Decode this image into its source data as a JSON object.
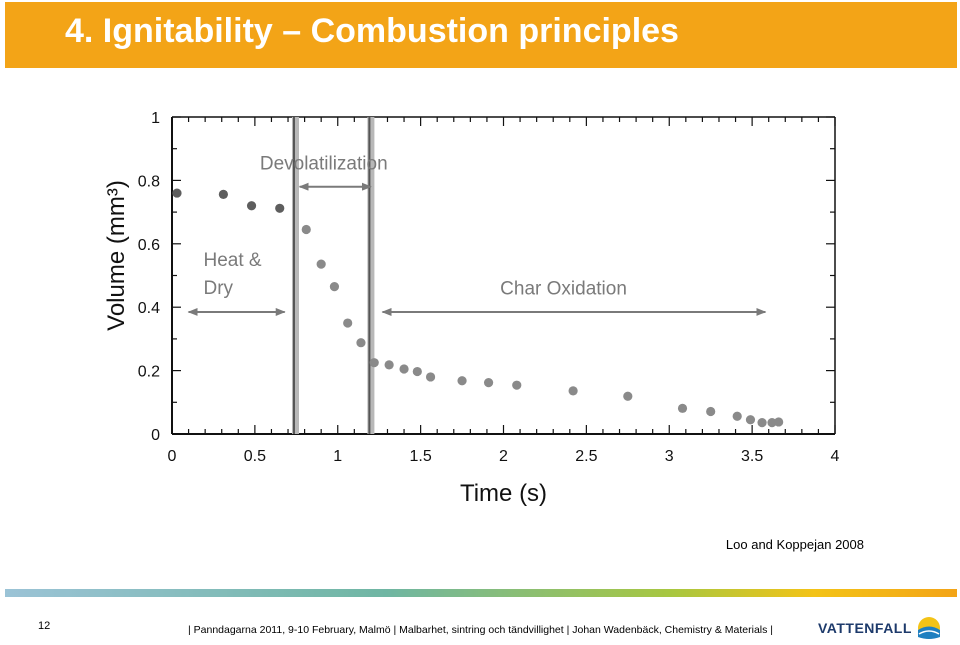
{
  "slide": {
    "title": "4. Ignitability – Combustion principles",
    "citation": "Loo and Koppejan 2008",
    "page_number": "12",
    "footer": "| Panndagarna 2011, 9-10 February, Malmö | Malbarhet, sintring och tändvillighet | Johan Wadenbäck, Chemistry & Materials |",
    "logo_text": "VATTENFALL",
    "colors": {
      "title_bar": "#f3a417",
      "title_text": "#ffffff",
      "points": "#8a8a8a",
      "region_lines": "#6e6e6e",
      "annotations": "#7a7a7a"
    }
  },
  "chart_data": {
    "type": "scatter",
    "xlabel": "Time (s)",
    "ylabel": "Volume (mm³)",
    "xlim": [
      0,
      4
    ],
    "ylim": [
      0,
      1
    ],
    "x_ticks": [
      "0",
      "0.5",
      "1",
      "1.5",
      "2",
      "2.5",
      "3",
      "3.5",
      "4"
    ],
    "y_ticks": [
      "0",
      "0.2",
      "0.4",
      "0.6",
      "0.8",
      "1"
    ],
    "x_tick_values": [
      0,
      0.5,
      1,
      1.5,
      2,
      2.5,
      3,
      3.5,
      4
    ],
    "y_tick_values": [
      0,
      0.2,
      0.4,
      0.6,
      0.8,
      1
    ],
    "series": [
      {
        "points": [
          [
            0.03,
            0.76
          ],
          [
            0.31,
            0.756
          ],
          [
            0.48,
            0.72
          ],
          [
            0.65,
            0.712
          ],
          [
            0.81,
            0.645
          ],
          [
            0.9,
            0.536
          ],
          [
            0.98,
            0.465
          ],
          [
            1.06,
            0.35
          ],
          [
            1.14,
            0.288
          ],
          [
            1.22,
            0.225
          ],
          [
            1.31,
            0.218
          ],
          [
            1.4,
            0.205
          ],
          [
            1.48,
            0.197
          ],
          [
            1.56,
            0.18
          ],
          [
            1.75,
            0.168
          ],
          [
            1.91,
            0.162
          ],
          [
            2.08,
            0.154
          ],
          [
            2.42,
            0.136
          ],
          [
            2.75,
            0.119
          ],
          [
            3.08,
            0.081
          ],
          [
            3.25,
            0.071
          ],
          [
            3.41,
            0.056
          ],
          [
            3.49,
            0.045
          ],
          [
            3.56,
            0.036
          ],
          [
            3.62,
            0.036
          ],
          [
            3.66,
            0.038
          ]
        ]
      }
    ],
    "regions": [
      {
        "label": "Heat & Dry",
        "lines": [
          "Heat &",
          "Dry"
        ],
        "x_start": 0.1,
        "x_end": 0.68,
        "arrow_y": 0.385
      },
      {
        "label": "Devolatilization",
        "x_start": 0.77,
        "x_end": 1.2,
        "arrow_y": 0.78
      },
      {
        "label": "Char Oxidation",
        "x_start": 1.27,
        "x_end": 3.58,
        "arrow_y": 0.385
      }
    ],
    "boundaries": [
      0.745,
      1.2
    ],
    "grid": false
  }
}
